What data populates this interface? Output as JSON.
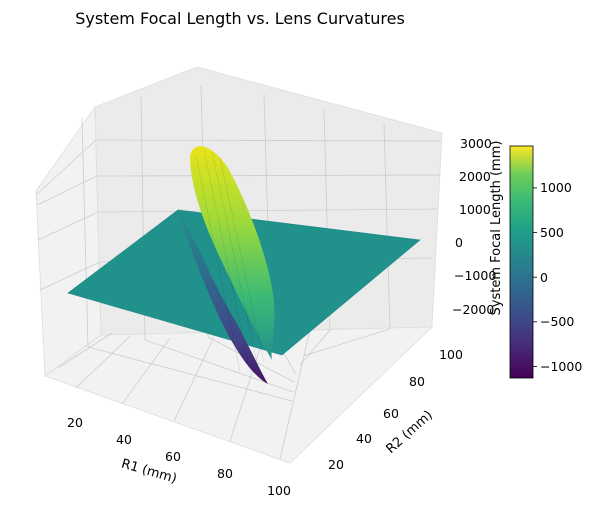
{
  "chart_data": {
    "type": "surface3d",
    "title": "System Focal Length vs. Lens Curvatures",
    "xlabel": "R1 (mm)",
    "ylabel": "R2 (mm)",
    "zlabel": "System Focal Length (mm)",
    "x_range": [
      10,
      100
    ],
    "y_range": [
      10,
      100
    ],
    "z_range": [
      -2300,
      3200
    ],
    "x_ticks": [
      "20",
      "40",
      "60",
      "80",
      "100"
    ],
    "y_ticks": [
      "20",
      "40",
      "60",
      "80",
      "100"
    ],
    "z_ticks": [
      "−2000",
      "−1000",
      "0",
      "1000",
      "2000",
      "3000"
    ],
    "colormap": "viridis",
    "colorbar": {
      "range": [
        -1150,
        1450
      ],
      "ticks": [
        "−1000",
        "−500",
        "0",
        "500",
        "1000"
      ]
    },
    "surface_samples": [
      {
        "r1": 10,
        "r2": 10,
        "f": 0
      },
      {
        "r1": 100,
        "r2": 100,
        "f": 0
      },
      {
        "r1": 42,
        "r2": 60,
        "f": 3000
      },
      {
        "r1": 45,
        "r2": 50,
        "f": -2100
      }
    ],
    "grid": true
  }
}
